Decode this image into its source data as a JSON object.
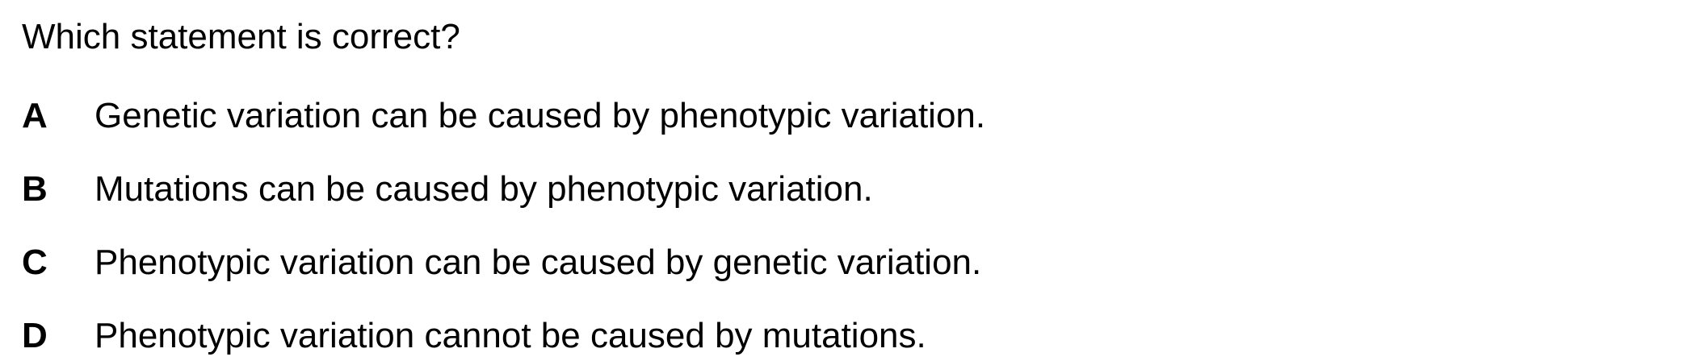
{
  "question": "Which statement is correct?",
  "options": [
    {
      "letter": "A",
      "text": "Genetic variation can be caused by phenotypic variation."
    },
    {
      "letter": "B",
      "text": "Mutations can be caused by phenotypic variation."
    },
    {
      "letter": "C",
      "text": "Phenotypic variation can be caused by genetic variation."
    },
    {
      "letter": "D",
      "text": "Phenotypic variation cannot be caused by mutations."
    }
  ]
}
